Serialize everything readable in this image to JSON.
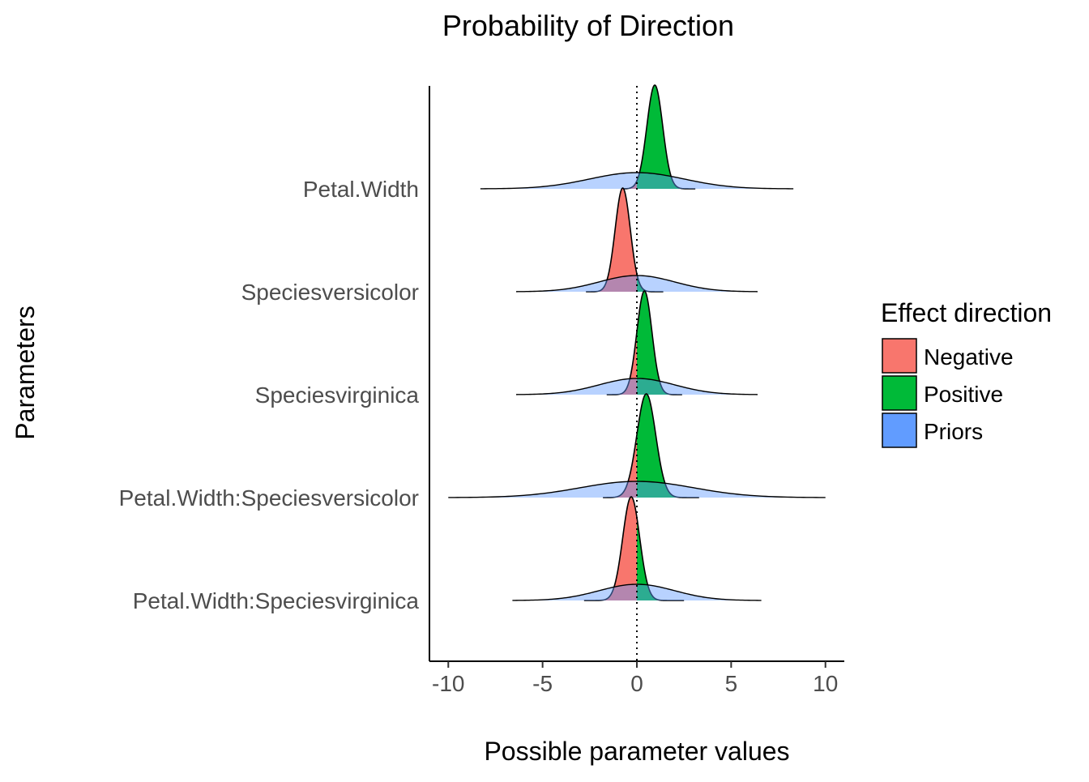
{
  "chart_data": {
    "type": "area",
    "title": "Probability of Direction",
    "xlabel": "Possible parameter values",
    "ylabel": "Parameters",
    "xlim": [
      -11,
      11
    ],
    "x_ticks": [
      -10,
      -5,
      0,
      5,
      10
    ],
    "x_tick_labels": [
      "-10",
      "-5",
      "0",
      "5",
      "10"
    ],
    "reference_line": 0,
    "legend": {
      "title": "Effect direction",
      "placement": "right",
      "entries": [
        {
          "label": "Negative",
          "color": "#F8766D"
        },
        {
          "label": "Positive",
          "color": "#00BA38"
        },
        {
          "label": "Priors",
          "color": "#619CFF"
        }
      ]
    },
    "parameters": [
      {
        "label": "Petal.Width",
        "posterior": {
          "center": 0.95,
          "sd": 0.42,
          "min": -0.7,
          "max": 3.1
        },
        "prior": {
          "center": 0.0,
          "sd": 2.5,
          "min": -8.3,
          "max": 8.3
        }
      },
      {
        "label": "Speciesversicolor",
        "posterior": {
          "center": -0.75,
          "sd": 0.4,
          "min": -2.7,
          "max": 1.4
        },
        "prior": {
          "center": 0.0,
          "sd": 2.0,
          "min": -6.4,
          "max": 6.4
        }
      },
      {
        "label": "Speciesvirginica",
        "posterior": {
          "center": 0.4,
          "sd": 0.4,
          "min": -1.6,
          "max": 2.4
        },
        "prior": {
          "center": 0.0,
          "sd": 2.0,
          "min": -6.4,
          "max": 6.4
        }
      },
      {
        "label": "Petal.Width:Speciesversicolor",
        "posterior": {
          "center": 0.5,
          "sd": 0.5,
          "min": -1.8,
          "max": 3.3
        },
        "prior": {
          "center": 0.0,
          "sd": 3.0,
          "min": -10.0,
          "max": 10.0
        }
      },
      {
        "label": "Petal.Width:Speciesvirginica",
        "posterior": {
          "center": -0.3,
          "sd": 0.45,
          "min": -2.8,
          "max": 2.5
        },
        "prior": {
          "center": 0.0,
          "sd": 2.0,
          "min": -6.6,
          "max": 6.6
        }
      }
    ],
    "grid": false
  }
}
